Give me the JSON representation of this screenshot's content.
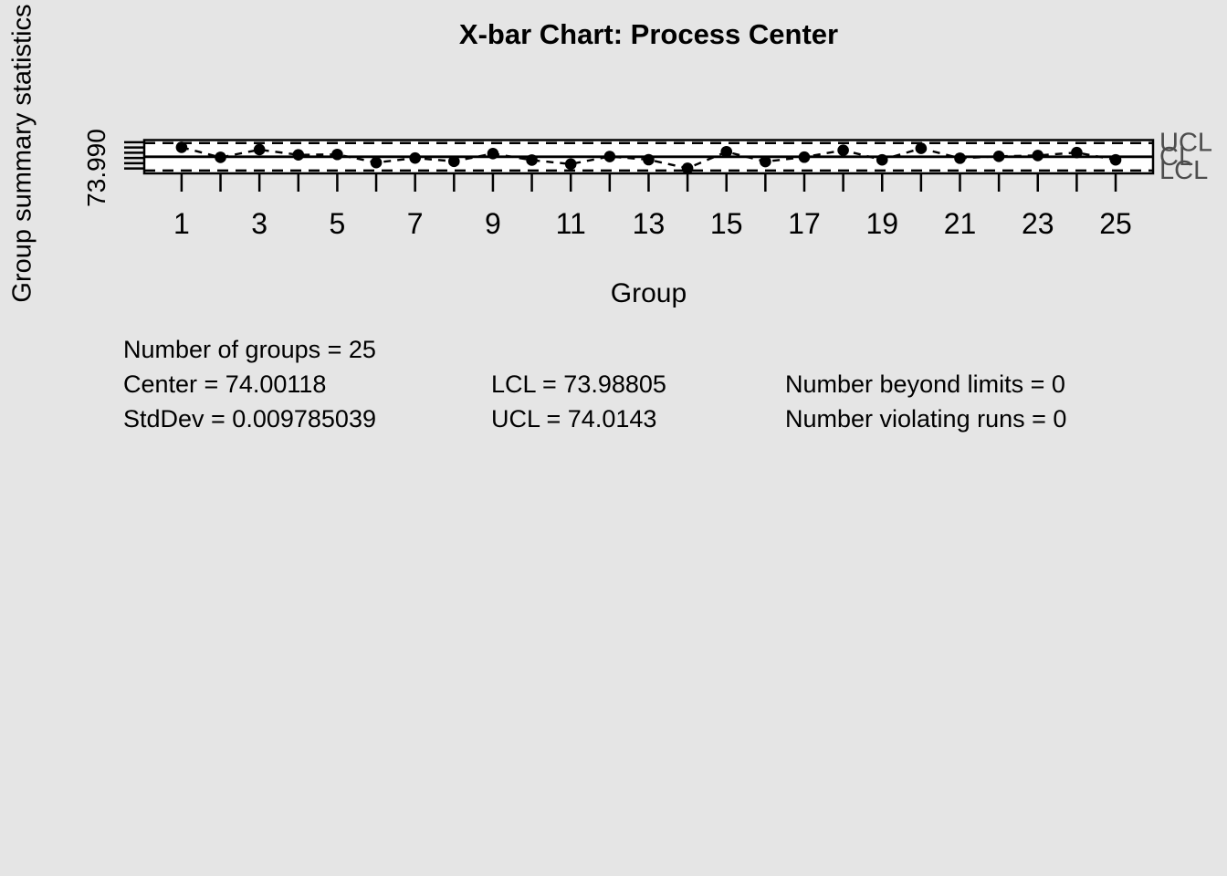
{
  "chart": {
    "title": "X-bar Chart: Process Center",
    "x_axis_label": "Group",
    "y_axis_label": "Group summary statistics",
    "y_tick_label": "73.990",
    "limit_labels": {
      "ucl": "UCL",
      "center": "CL",
      "lcl": "LCL"
    }
  },
  "chart_data": {
    "type": "line",
    "subtype": "xbar-control-chart",
    "title": "X-bar Chart: Process Center",
    "xlabel": "Group",
    "ylabel": "Group summary statistics",
    "x": [
      1,
      2,
      3,
      4,
      5,
      6,
      7,
      8,
      9,
      10,
      11,
      12,
      13,
      14,
      15,
      16,
      17,
      18,
      19,
      20,
      21,
      22,
      23,
      24,
      25
    ],
    "values": [
      74.0102,
      74.0006,
      74.008,
      74.003,
      74.0034,
      73.9956,
      74.0,
      73.9968,
      74.0042,
      73.998,
      73.9942,
      74.0014,
      73.9984,
      73.9902,
      74.006,
      73.9966,
      74.0008,
      74.0074,
      73.9982,
      74.0092,
      73.9998,
      74.0016,
      74.0024,
      74.0052,
      73.9982
    ],
    "center": 74.00118,
    "ucl": 74.0143,
    "lcl": 73.98805,
    "y_ticks": [
      73.99,
      73.995,
      74.0,
      74.005,
      74.01,
      74.015
    ],
    "x_tick_labels": [
      1,
      3,
      5,
      7,
      9,
      11,
      13,
      15,
      17,
      19,
      21,
      23,
      25
    ],
    "ylim": [
      73.987,
      74.0154
    ],
    "grid": false,
    "legend_position": "none",
    "marker": "filled-circle",
    "line_style": "dashed"
  },
  "stats": {
    "number_of_groups": "Number of groups = 25",
    "center": "Center = 74.00118",
    "std_dev": "StdDev = 0.009785039",
    "lcl": "LCL = 73.98805",
    "ucl": "UCL = 74.0143",
    "beyond_limits": "Number beyond limits = 0",
    "violating_runs": "Number violating runs = 0"
  },
  "colors": {
    "background": "#E5E5E5",
    "plot_background": "#FFFFFF",
    "line": "#000000",
    "point": "#000000",
    "limit_label": "#4d4d4d"
  }
}
